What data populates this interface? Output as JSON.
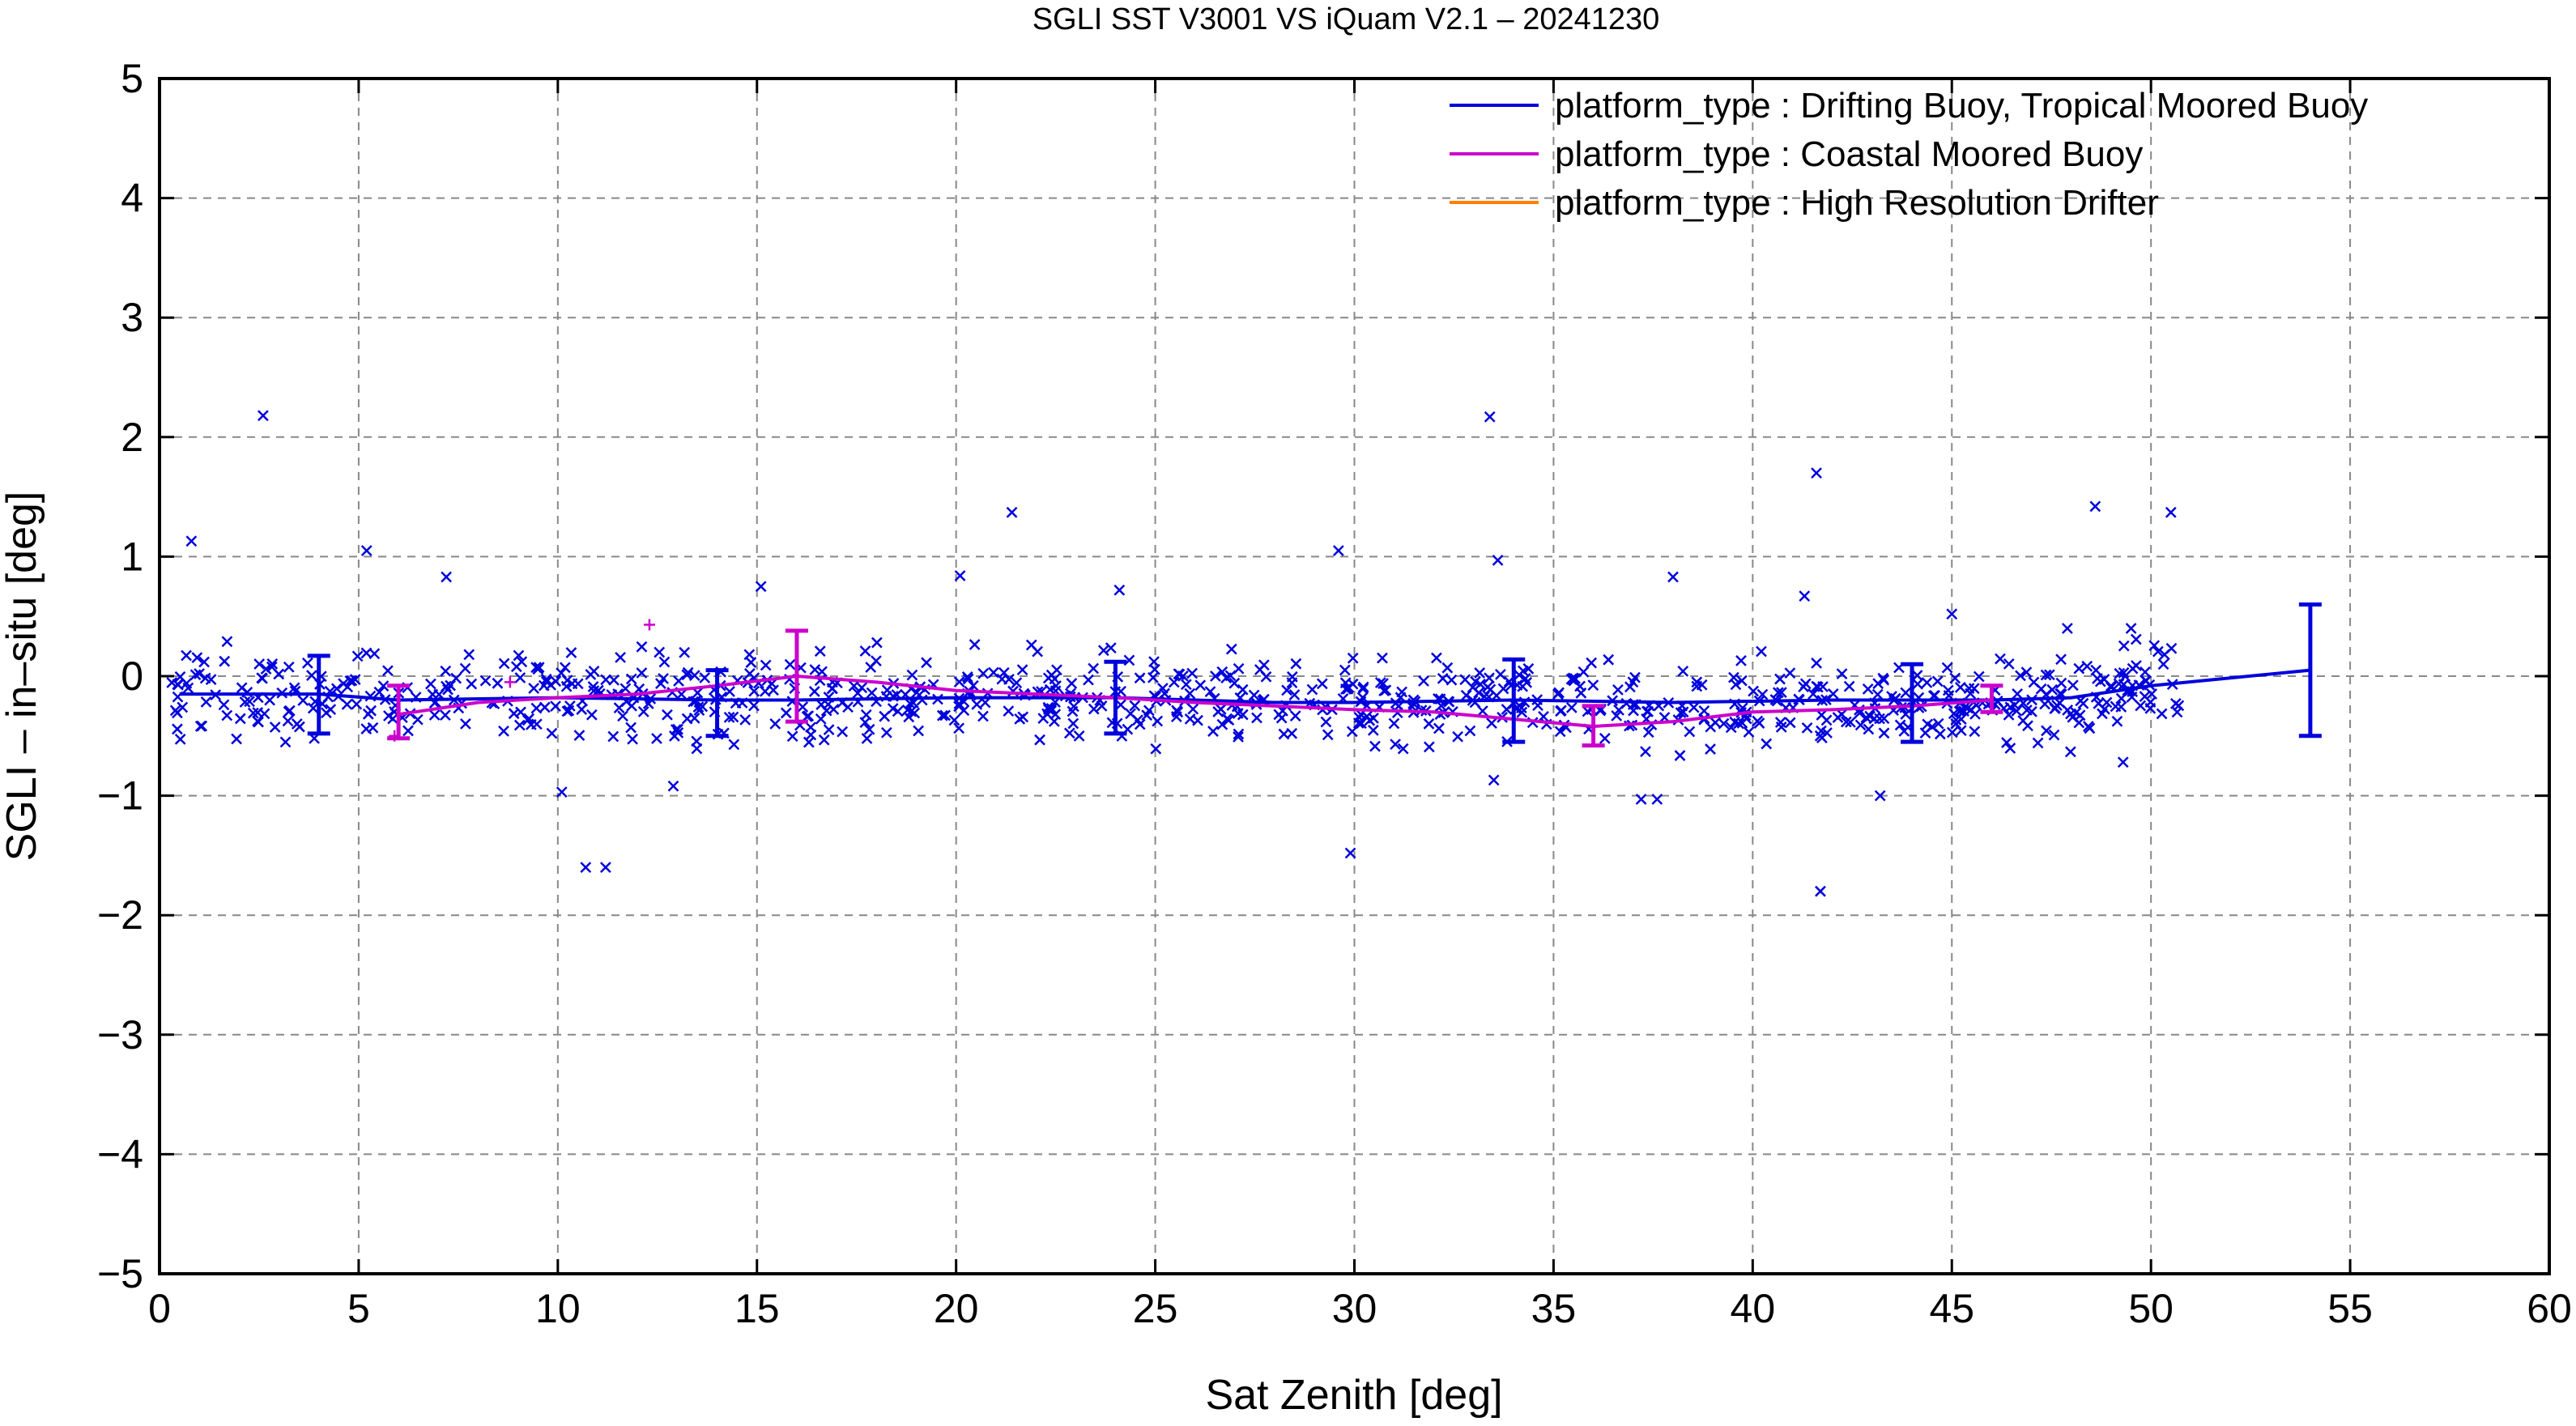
{
  "chart_data": {
    "type": "scatter",
    "title": "SGLI SST V3001 VS iQuam V2.1  – 20241230",
    "xlabel": "Sat Zenith [deg]",
    "ylabel": "SGLI – in–situ [deg]",
    "xlim": [
      0,
      60
    ],
    "ylim": [
      -5,
      5
    ],
    "x_ticks": [
      0,
      5,
      10,
      15,
      20,
      25,
      30,
      35,
      40,
      45,
      50,
      55,
      60
    ],
    "y_ticks": [
      -5,
      -4,
      -3,
      -2,
      -1,
      0,
      1,
      2,
      3,
      4,
      5
    ],
    "x_tick_labels": [
      "0",
      "5",
      "10",
      "15",
      "20",
      "25",
      "30",
      "35",
      "40",
      "45",
      "50",
      "55",
      "60"
    ],
    "y_tick_labels": [
      "−5",
      "−4",
      "−3",
      "−2",
      "−1",
      "0",
      "1",
      "2",
      "3",
      "4",
      "5"
    ],
    "grid": true,
    "legend_position": "top-right",
    "series": [
      {
        "name": "platform_type : Drifting Buoy, Tropical Moored Buoy",
        "color": "#0000dd",
        "marker": "x",
        "mean_line": {
          "x": [
            0.5,
            4,
            6,
            10,
            14,
            16,
            20,
            24,
            28,
            30,
            34,
            38,
            42,
            44,
            46,
            48,
            50,
            54
          ],
          "y": [
            -0.15,
            -0.15,
            -0.2,
            -0.18,
            -0.2,
            -0.2,
            -0.18,
            -0.18,
            -0.22,
            -0.22,
            -0.2,
            -0.22,
            -0.2,
            -0.2,
            -0.2,
            -0.18,
            -0.08,
            0.05
          ]
        },
        "error_bars": [
          {
            "x": 4,
            "mean": -0.15,
            "low": -0.48,
            "high": 0.17
          },
          {
            "x": 14,
            "mean": -0.2,
            "low": -0.5,
            "high": 0.05
          },
          {
            "x": 24,
            "mean": -0.18,
            "low": -0.48,
            "high": 0.12
          },
          {
            "x": 34,
            "mean": -0.2,
            "low": -0.55,
            "high": 0.14
          },
          {
            "x": 44,
            "mean": -0.2,
            "low": -0.55,
            "high": 0.1
          },
          {
            "x": 54,
            "mean": 0.05,
            "low": -0.5,
            "high": 0.6
          }
        ],
        "outliers": [
          {
            "x": 2.6,
            "y": 2.18
          },
          {
            "x": 0.8,
            "y": 1.13
          },
          {
            "x": 5.2,
            "y": 1.05
          },
          {
            "x": 7.2,
            "y": 0.83
          },
          {
            "x": 10.1,
            "y": -0.97
          },
          {
            "x": 10.7,
            "y": -1.6
          },
          {
            "x": 11.2,
            "y": -1.6
          },
          {
            "x": 12.9,
            "y": -0.92
          },
          {
            "x": 15.1,
            "y": 0.75
          },
          {
            "x": 21.4,
            "y": 1.37
          },
          {
            "x": 20.1,
            "y": 0.84
          },
          {
            "x": 24.1,
            "y": 0.72
          },
          {
            "x": 29.6,
            "y": 1.05
          },
          {
            "x": 29.9,
            "y": -1.48
          },
          {
            "x": 33.4,
            "y": 2.17
          },
          {
            "x": 33.6,
            "y": 0.97
          },
          {
            "x": 33.5,
            "y": -0.87
          },
          {
            "x": 37.2,
            "y": -1.03
          },
          {
            "x": 37.6,
            "y": -1.03
          },
          {
            "x": 38.0,
            "y": 0.83
          },
          {
            "x": 41.3,
            "y": 0.67
          },
          {
            "x": 41.6,
            "y": 1.7
          },
          {
            "x": 41.7,
            "y": -1.8
          },
          {
            "x": 43.2,
            "y": -1.0
          },
          {
            "x": 45.0,
            "y": 0.52
          },
          {
            "x": 48.6,
            "y": 1.42
          },
          {
            "x": 50.5,
            "y": 1.37
          },
          {
            "x": 49.5,
            "y": 0.4
          },
          {
            "x": 49.3,
            "y": -0.72
          },
          {
            "x": 47.9,
            "y": 0.4
          }
        ]
      },
      {
        "name": "platform_type : Coastal Moored Buoy",
        "color": "#cc00cc",
        "marker": "+",
        "mean_line": {
          "x": [
            6,
            8,
            10,
            12,
            14,
            16,
            18,
            20,
            22,
            24,
            26,
            28,
            30,
            32,
            34,
            36,
            38,
            40,
            42,
            44,
            46
          ],
          "y": [
            -0.32,
            -0.22,
            -0.18,
            -0.15,
            -0.08,
            0.0,
            -0.05,
            -0.12,
            -0.15,
            -0.18,
            -0.22,
            -0.25,
            -0.28,
            -0.3,
            -0.36,
            -0.42,
            -0.38,
            -0.3,
            -0.28,
            -0.25,
            -0.2
          ]
        },
        "error_bars": [
          {
            "x": 6,
            "mean": -0.32,
            "low": -0.52,
            "high": -0.08
          },
          {
            "x": 16,
            "mean": 0.0,
            "low": -0.38,
            "high": 0.38
          },
          {
            "x": 36,
            "mean": -0.42,
            "low": -0.58,
            "high": -0.25
          },
          {
            "x": 46,
            "mean": -0.2,
            "low": -0.3,
            "high": -0.08
          }
        ],
        "points": [
          {
            "x": 12.3,
            "y": 0.43
          },
          {
            "x": 8.8,
            "y": -0.05
          },
          {
            "x": 5.9,
            "y": -0.5
          }
        ]
      },
      {
        "name": "platform_type : High Resolution Drifter",
        "color": "#ff8000",
        "marker": "x",
        "mean_line": {
          "x": [],
          "y": []
        },
        "error_bars": []
      }
    ]
  }
}
